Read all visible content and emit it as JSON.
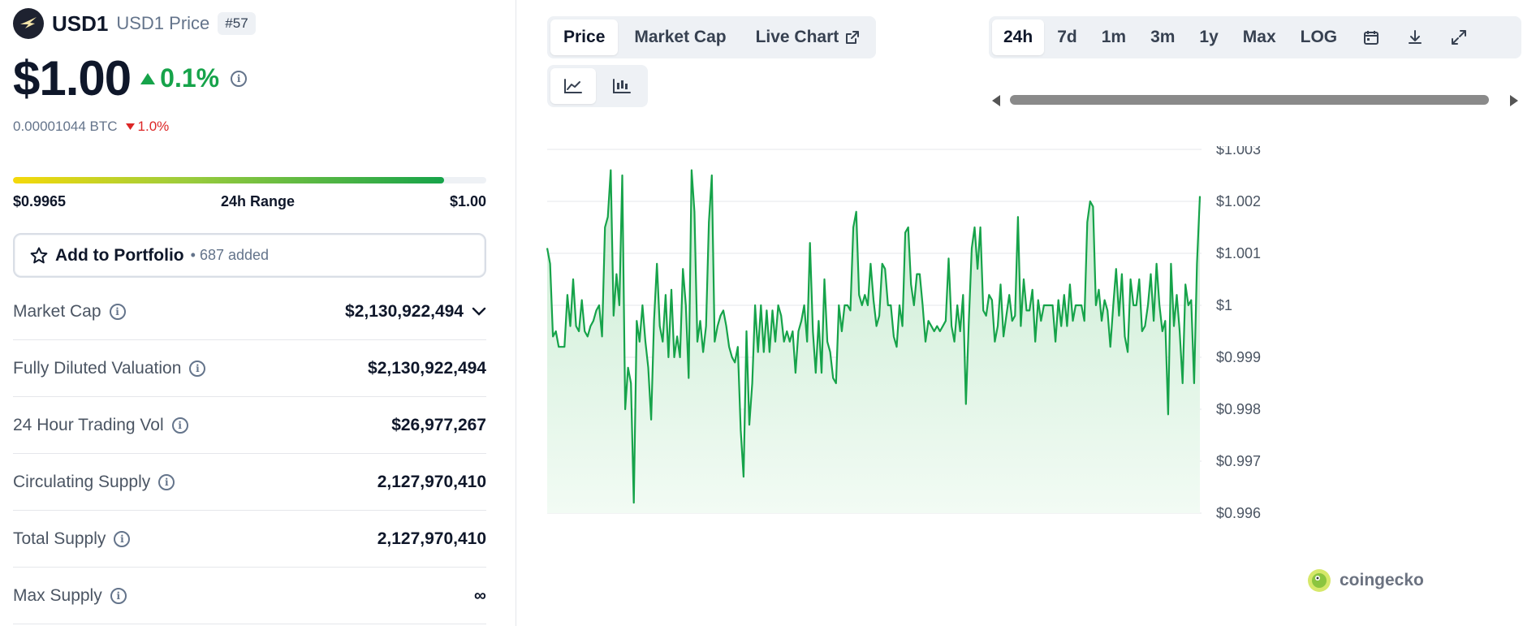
{
  "coin": {
    "symbol": "USD1",
    "subtitle": "USD1 Price",
    "rank": "#57",
    "price": "$1.00",
    "change_24h": "0.1%",
    "btc_price": "0.00001044 BTC",
    "btc_change": "1.0%"
  },
  "range_24h": {
    "low": "$0.9965",
    "label": "24h Range",
    "high": "$1.00",
    "fill_fraction": 0.91
  },
  "portfolio": {
    "label": "Add to Portfolio",
    "count": "• 687 added"
  },
  "stats": [
    {
      "label": "Market Cap",
      "value": "$2,130,922,494"
    },
    {
      "label": "Fully Diluted Valuation",
      "value": "$2,130,922,494"
    },
    {
      "label": "24 Hour Trading Vol",
      "value": "$26,977,267"
    },
    {
      "label": "Circulating Supply",
      "value": "2,127,970,410"
    },
    {
      "label": "Total Supply",
      "value": "2,127,970,410"
    },
    {
      "label": "Max Supply",
      "value": "∞"
    }
  ],
  "chart_tabs": [
    "Price",
    "Market Cap",
    "Live Chart"
  ],
  "time_ranges": [
    "24h",
    "7d",
    "1m",
    "3m",
    "1y",
    "Max",
    "LOG"
  ],
  "watermark": "coingecko",
  "colors": {
    "up": "#16a34a",
    "down": "#dc2626",
    "line": "#16a34a",
    "area_top": "#c9ecd2",
    "area_bottom": "#f2fbf4"
  },
  "chart_data": {
    "type": "area",
    "ylim": [
      0.996,
      1.003
    ],
    "y_ticks": [
      {
        "value": 1.003,
        "label": "$1.003"
      },
      {
        "value": 1.002,
        "label": "$1.002"
      },
      {
        "value": 1.001,
        "label": "$1.001"
      },
      {
        "value": 1.0,
        "label": "$1"
      },
      {
        "value": 0.999,
        "label": "$0.999"
      },
      {
        "value": 0.998,
        "label": "$0.998"
      },
      {
        "value": 0.997,
        "label": "$0.997"
      },
      {
        "value": 0.996,
        "label": "$0.996"
      }
    ],
    "grid": true,
    "values": [
      1.0011,
      1.0008,
      0.9994,
      0.9995,
      0.9992,
      0.9992,
      0.9992,
      1.0002,
      0.9996,
      1.0005,
      0.9996,
      0.9995,
      1.0001,
      0.9995,
      0.9994,
      0.9996,
      0.9997,
      0.9999,
      1.0,
      0.9994,
      1.0015,
      1.0017,
      1.0026,
      0.9998,
      1.0006,
      1.0,
      1.0025,
      0.998,
      0.9988,
      0.9985,
      0.9962,
      0.9997,
      0.9993,
      1.0,
      0.9993,
      0.9988,
      0.9978,
      0.9997,
      1.0008,
      0.9996,
      0.9993,
      1.0002,
      0.999,
      1.0003,
      0.999,
      0.9994,
      0.999,
      1.0007,
      1.0,
      0.9986,
      1.0026,
      1.0018,
      0.9993,
      0.9997,
      0.9991,
      0.9996,
      1.0016,
      1.0025,
      0.9993,
      0.9996,
      0.9998,
      0.9999,
      0.9996,
      0.9992,
      0.999,
      0.9989,
      0.9992,
      0.9976,
      0.9967,
      0.9995,
      0.9977,
      0.9985,
      1.0,
      0.9991,
      1.0,
      0.9991,
      0.9999,
      0.9991,
      0.9999,
      0.9993,
      1.0,
      0.9998,
      0.9993,
      0.9995,
      0.9993,
      0.9995,
      0.9987,
      0.9995,
      0.9997,
      1.0,
      0.9993,
      1.0012,
      0.9995,
      0.9987,
      0.9997,
      0.9987,
      1.0005,
      0.9993,
      0.9991,
      0.9986,
      0.9985,
      1.0,
      0.9995,
      1.0,
      1.0,
      0.9999,
      1.0015,
      1.0018,
      1.0002,
      1.0,
      1.0002,
      1.0,
      1.0008,
      1.0001,
      0.9996,
      0.9998,
      1.0008,
      1.0007,
      1.0,
      1.0,
      0.9994,
      0.9992,
      1.0,
      0.9996,
      1.0014,
      1.0015,
      1.0004,
      1.0,
      1.0006,
      1.0006,
      1.0,
      0.9993,
      0.9997,
      0.9996,
      0.9995,
      0.9996,
      0.9995,
      0.9996,
      0.9997,
      1.0009,
      0.9996,
      0.9993,
      1.0,
      0.9995,
      1.0002,
      0.9981,
      0.9997,
      1.0011,
      1.0015,
      1.0007,
      1.0015,
      0.9999,
      0.9998,
      1.0002,
      1.0001,
      0.9993,
      0.9996,
      1.0004,
      0.9994,
      0.9998,
      1.0002,
      0.9997,
      0.9998,
      1.0017,
      0.9996,
      1.0005,
      0.9999,
      0.9999,
      1.0003,
      0.9993,
      1.0001,
      0.9997,
      1.0,
      1.0,
      1.0,
      1.0,
      0.9993,
      1.0001,
      0.9996,
      1.0002,
      0.9996,
      1.0004,
      0.9997,
      1.0,
      1.0,
      1.0,
      0.9997,
      1.0016,
      1.002,
      1.0019,
      1.0,
      1.0003,
      0.9997,
      1.0001,
      0.9999,
      0.9992,
      1.0,
      1.0007,
      0.9998,
      1.0006,
      0.9994,
      0.9991,
      1.0005,
      1.0,
      1.0,
      1.0005,
      0.9995,
      0.9996,
      1.0,
      1.0006,
      0.9997,
      1.0008,
      1.0,
      0.9995,
      0.9997,
      0.9979,
      1.0008,
      0.9996,
      1.0002,
      0.9995,
      0.9985,
      1.0004,
      1.0,
      1.0001,
      0.9985,
      1.0008,
      1.0021
    ]
  }
}
